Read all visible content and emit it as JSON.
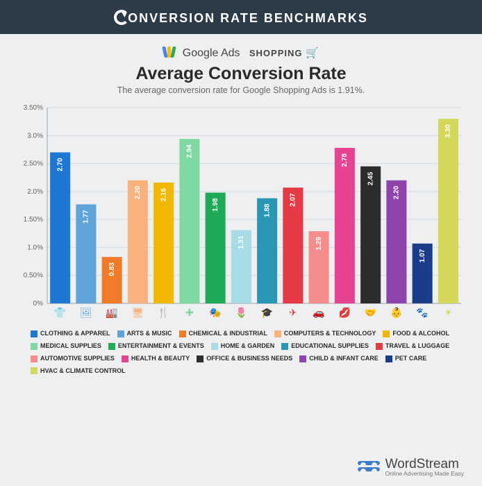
{
  "banner": {
    "text": "ONVERSION RATE BENCHMARKS"
  },
  "source": {
    "google_ads": "Google Ads",
    "shopping": "SHOPPING",
    "logo_colors": [
      "#4285f4",
      "#fbbc05",
      "#34a853"
    ],
    "cart_color": "#777"
  },
  "title": "Average Conversion Rate",
  "subtitle": "The average conversion rate for Google Shopping Ads is 1.91%.",
  "chart": {
    "type": "bar",
    "ylim": [
      0,
      3.5
    ],
    "ytick_step": 0.5,
    "ytick_format_suffix": "%",
    "y_decimals": 2,
    "background": "#eeeff0",
    "grid_color": "#d6d9dc",
    "axis_color": "#9aa0a6",
    "tick_label_color": "#666",
    "tick_fontsize": 10,
    "value_label_color": "#ffffff",
    "value_label_fontsize": 10,
    "bar_gap_ratio": 0.22,
    "categories": [
      {
        "label": "CLOTHING & APPAREL",
        "value": 2.7,
        "color": "#1f77d4",
        "icon": "tshirt"
      },
      {
        "label": "ARTS & MUSIC",
        "value": 1.77,
        "color": "#5fa4d8",
        "icon": "picture"
      },
      {
        "label": "CHEMICAL & INDUSTRIAL",
        "value": 0.83,
        "color": "#f07b28",
        "icon": "factory"
      },
      {
        "label": "COMPUTERS & TECHNOLOGY",
        "value": 2.2,
        "color": "#f9b27c",
        "icon": "monitor"
      },
      {
        "label": "FOOD & ALCOHOL",
        "value": 2.16,
        "color": "#f3b700",
        "icon": "fork"
      },
      {
        "label": "MEDICAL SUPPLIES",
        "value": 2.94,
        "color": "#7fd9a3",
        "icon": "plus"
      },
      {
        "label": "ENTERTAINMENT & EVENTS",
        "value": 1.98,
        "color": "#1faa59",
        "icon": "masks"
      },
      {
        "label": "HOME & GARDEN",
        "value": 1.31,
        "color": "#a7dce6",
        "icon": "flower"
      },
      {
        "label": "EDUCATIONAL SUPPLIES",
        "value": 1.88,
        "color": "#2a98b5",
        "icon": "grad"
      },
      {
        "label": "TRAVEL & LUGGAGE",
        "value": 2.07,
        "color": "#e63946",
        "icon": "plane"
      },
      {
        "label": "AUTOMOTIVE SUPPLIES",
        "value": 1.29,
        "color": "#f58d8d",
        "icon": "car"
      },
      {
        "label": "HEALTH & BEAUTY",
        "value": 2.78,
        "color": "#e84393",
        "icon": "lips"
      },
      {
        "label": "OFFICE & BUSINESS NEEDS",
        "value": 2.45,
        "color": "#2c2c2c",
        "icon": "handshake"
      },
      {
        "label": "CHILD & INFANT CARE",
        "value": 2.2,
        "color": "#8e44ad",
        "icon": "baby"
      },
      {
        "label": "PET CARE",
        "value": 1.07,
        "color": "#1b3b8b",
        "icon": "paw"
      },
      {
        "label": "HVAC & CLIMATE CONTROL",
        "value": 3.3,
        "color": "#d4d85a",
        "icon": "sun"
      }
    ]
  },
  "footer": {
    "brand": "WordStream",
    "tagline": "Online Advertising Made Easy",
    "logo_color": "#3a7cc6"
  }
}
